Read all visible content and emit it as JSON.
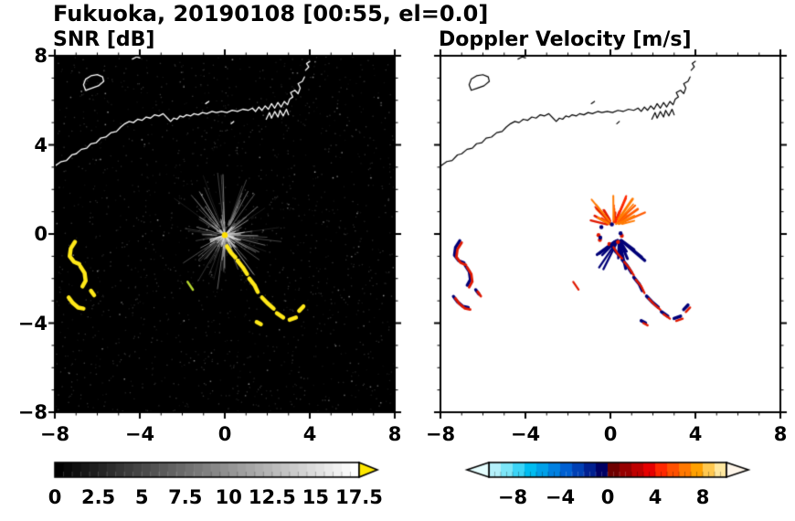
{
  "header": {
    "title": "Fukuoka, 20190108 [00:55, el=0.0]"
  },
  "chart_data": {
    "type": "heatmap",
    "variant": "dual-panel radar PPI scan (range -8..8 km on both axes)",
    "panels": [
      {
        "id": "snr",
        "title": "SNR [dB]",
        "background": "#000000",
        "xlim": [
          -8,
          8
        ],
        "ylim": [
          -8,
          8
        ],
        "tick_values": [
          -8,
          -4,
          0,
          4,
          8
        ],
        "xtick_labels": [
          "−8",
          "−4",
          "0",
          "4",
          "8"
        ],
        "ytick_labels": [
          "−8",
          "−4",
          "0",
          "4",
          "8"
        ],
        "minor_tick_step": 1,
        "colorbar": {
          "min": 0,
          "max": 17.5,
          "segment_step": 0.5,
          "tick_values": [
            0,
            2.5,
            5,
            7.5,
            10,
            12.5,
            15,
            17.5
          ],
          "tick_labels": [
            "0",
            "2.5",
            "5",
            "7.5",
            "10",
            "12.5",
            "15",
            "17.5"
          ],
          "style": "grayscale black to white",
          "over_arrow_color": "#ffe800"
        }
      },
      {
        "id": "doppler",
        "title": "Doppler Velocity [m/s]",
        "background": "#ffffff",
        "xlim": [
          -8,
          8
        ],
        "ylim": [
          -8,
          8
        ],
        "tick_values": [
          -8,
          -4,
          0,
          4,
          8
        ],
        "xtick_labels": [
          "−8",
          "−4",
          "0",
          "4",
          "8"
        ],
        "ytick_labels": [
          "−8",
          "−4",
          "0",
          "4",
          "8"
        ],
        "minor_tick_step": 1,
        "colorbar": {
          "min": -10,
          "max": 10,
          "segment_step": 1,
          "tick_values": [
            -8,
            -4,
            0,
            4,
            8
          ],
          "tick_labels": [
            "−8",
            "−4",
            "0",
            "4",
            "8"
          ],
          "style": "cyan-blue-navy for negative, darkred-red-orange for positive",
          "stops_negative": [
            "#b4f0fa",
            "#7ce6f8",
            "#3cd4f6",
            "#00bcf0",
            "#00a0e8",
            "#0080e0",
            "#0060d2",
            "#0040b4",
            "#002090",
            "#000064"
          ],
          "stops_positive": [
            "#6e0000",
            "#960000",
            "#be0000",
            "#e60000",
            "#ff2800",
            "#ff5000",
            "#ff7800",
            "#ffa000",
            "#ffc850",
            "#ffe8a0"
          ],
          "under_arrow_color": "#e6feff",
          "over_arrow_color": "#fff6ea"
        }
      }
    ],
    "features": {
      "coastline": {
        "snr_color": "#ffffff",
        "doppler_color": "#000000",
        "main": [
          [
            -8.0,
            3.05
          ],
          [
            -7.7,
            3.25
          ],
          [
            -7.45,
            3.3
          ],
          [
            -7.2,
            3.55
          ],
          [
            -7.0,
            3.6
          ],
          [
            -6.75,
            3.8
          ],
          [
            -6.5,
            3.85
          ],
          [
            -6.3,
            4.05
          ],
          [
            -6.05,
            4.1
          ],
          [
            -5.85,
            4.3
          ],
          [
            -5.6,
            4.35
          ],
          [
            -5.35,
            4.55
          ],
          [
            -5.1,
            4.6
          ],
          [
            -4.9,
            4.8
          ],
          [
            -4.7,
            4.95
          ],
          [
            -4.5,
            5.05
          ],
          [
            -4.3,
            5.0
          ],
          [
            -4.1,
            5.15
          ],
          [
            -3.9,
            5.1
          ],
          [
            -3.7,
            5.25
          ],
          [
            -3.5,
            5.2
          ],
          [
            -3.3,
            5.35
          ],
          [
            -3.1,
            5.3
          ],
          [
            -2.9,
            5.4
          ],
          [
            -2.7,
            5.2
          ],
          [
            -2.55,
            5.05
          ],
          [
            -2.4,
            5.2
          ],
          [
            -2.25,
            5.15
          ],
          [
            -2.1,
            5.3
          ],
          [
            -1.95,
            5.25
          ],
          [
            -1.8,
            5.35
          ],
          [
            -1.6,
            5.3
          ],
          [
            -1.45,
            5.4
          ],
          [
            -1.25,
            5.35
          ],
          [
            -1.05,
            5.45
          ],
          [
            -0.85,
            5.4
          ],
          [
            -0.6,
            5.5
          ],
          [
            -0.4,
            5.45
          ],
          [
            -0.15,
            5.5
          ],
          [
            0.1,
            5.45
          ],
          [
            0.35,
            5.55
          ],
          [
            0.6,
            5.5
          ],
          [
            0.85,
            5.6
          ],
          [
            1.1,
            5.55
          ],
          [
            1.3,
            5.65
          ],
          [
            1.45,
            5.5
          ],
          [
            1.6,
            5.7
          ],
          [
            1.75,
            5.55
          ],
          [
            1.9,
            5.75
          ],
          [
            2.05,
            5.6
          ],
          [
            2.2,
            5.85
          ],
          [
            2.35,
            5.65
          ],
          [
            2.5,
            5.9
          ],
          [
            2.65,
            5.7
          ],
          [
            2.8,
            5.95
          ],
          [
            2.95,
            5.8
          ],
          [
            3.05,
            6.05
          ],
          [
            3.2,
            6.15
          ],
          [
            3.1,
            6.35
          ],
          [
            3.3,
            6.45
          ],
          [
            3.45,
            6.3
          ],
          [
            3.55,
            6.55
          ],
          [
            3.45,
            6.75
          ],
          [
            3.65,
            6.85
          ],
          [
            3.75,
            7.05
          ]
        ],
        "island": [
          [
            -6.55,
            6.45
          ],
          [
            -6.25,
            6.55
          ],
          [
            -5.95,
            6.65
          ],
          [
            -5.7,
            6.85
          ],
          [
            -5.75,
            7.05
          ],
          [
            -6.0,
            7.15
          ],
          [
            -6.3,
            7.1
          ],
          [
            -6.55,
            6.95
          ],
          [
            -6.65,
            6.7
          ],
          [
            -6.55,
            6.45
          ]
        ],
        "port_comb": [
          [
            1.95,
            5.15
          ],
          [
            2.1,
            5.45
          ],
          [
            2.2,
            5.2
          ],
          [
            2.35,
            5.5
          ],
          [
            2.5,
            5.25
          ],
          [
            2.6,
            5.55
          ],
          [
            2.75,
            5.3
          ],
          [
            2.9,
            5.6
          ],
          [
            3.0,
            5.35
          ]
        ],
        "islets": [
          [
            [
              3.8,
              7.35
            ],
            [
              3.95,
              7.5
            ],
            [
              3.85,
              7.65
            ],
            [
              4.0,
              7.75
            ]
          ],
          [
            [
              -4.35,
              7.85
            ],
            [
              -4.15,
              7.95
            ],
            [
              -4.0,
              7.9
            ]
          ],
          [
            [
              -0.9,
              5.85
            ],
            [
              -0.75,
              5.95
            ]
          ],
          [
            [
              0.3,
              4.95
            ],
            [
              0.42,
              5.05
            ]
          ]
        ]
      },
      "snr": {
        "noise_count": 1500,
        "speck_count": 90,
        "starburst": {
          "center": [
            0,
            -0.05
          ],
          "count": 130,
          "core_count": 50,
          "seed": 42,
          "max_len": 2.2
        },
        "echo_color": "#ffe818",
        "stray_color": "#b8d830",
        "center_dot_color": "#ffdf00",
        "echoes_sw": [
          [
            [
              -7.05,
              -0.35
            ],
            [
              -7.25,
              -0.65
            ],
            [
              -7.3,
              -1.0
            ],
            [
              -7.1,
              -1.25
            ],
            [
              -6.85,
              -1.35
            ]
          ],
          [
            [
              -6.8,
              -1.45
            ],
            [
              -6.6,
              -1.75
            ],
            [
              -6.55,
              -2.1
            ],
            [
              -6.7,
              -2.35
            ]
          ],
          [
            [
              -7.35,
              -2.85
            ],
            [
              -7.15,
              -3.1
            ],
            [
              -6.9,
              -3.3
            ],
            [
              -6.65,
              -3.35
            ]
          ],
          [
            [
              -6.3,
              -2.55
            ],
            [
              -6.15,
              -2.75
            ]
          ]
        ],
        "echoes_chain": [
          [
            [
              0.1,
              -0.55
            ],
            [
              0.3,
              -0.85
            ],
            [
              0.5,
              -1.05
            ]
          ],
          [
            [
              0.6,
              -1.2
            ],
            [
              0.85,
              -1.5
            ],
            [
              1.05,
              -1.8
            ]
          ],
          [
            [
              1.15,
              -2.0
            ],
            [
              1.4,
              -2.3
            ],
            [
              1.55,
              -2.6
            ]
          ],
          [
            [
              1.75,
              -2.85
            ],
            [
              2.0,
              -3.1
            ],
            [
              2.3,
              -3.35
            ]
          ],
          [
            [
              2.45,
              -3.55
            ],
            [
              2.75,
              -3.75
            ]
          ],
          [
            [
              3.05,
              -3.85
            ],
            [
              3.35,
              -3.75
            ]
          ],
          [
            [
              3.5,
              -3.45
            ],
            [
              3.7,
              -3.25
            ]
          ],
          [
            [
              1.5,
              -3.95
            ],
            [
              1.7,
              -4.05
            ]
          ]
        ],
        "echo_stray": [
          [
            -1.75,
            -2.15
          ],
          [
            -1.5,
            -2.5
          ]
        ]
      },
      "doppler": {
        "seed": 7,
        "warm_color": "#e01800",
        "navy_color": "#000078",
        "warm_palette": [
          "#ff2800",
          "#ff5a00",
          "#e01800",
          "#ff7a00"
        ],
        "spray_warm": {
          "center": [
            0.15,
            0.35
          ],
          "count": 26,
          "ang_min": 10,
          "ang_max": 170,
          "r0_min": 0.15,
          "r0_max": 0.45,
          "len_min": 0.35,
          "len_max": 1.35
        },
        "spray_navy": {
          "center": [
            0.4,
            -0.2
          ],
          "count": 15,
          "ang_min": 215,
          "ang_max": 330,
          "r0_min": 0.1,
          "r0_max": 0.3,
          "len_min": 0.4,
          "len_max": 1.5
        },
        "ring": {
          "count": 9,
          "radius": 0.45
        }
      }
    }
  }
}
